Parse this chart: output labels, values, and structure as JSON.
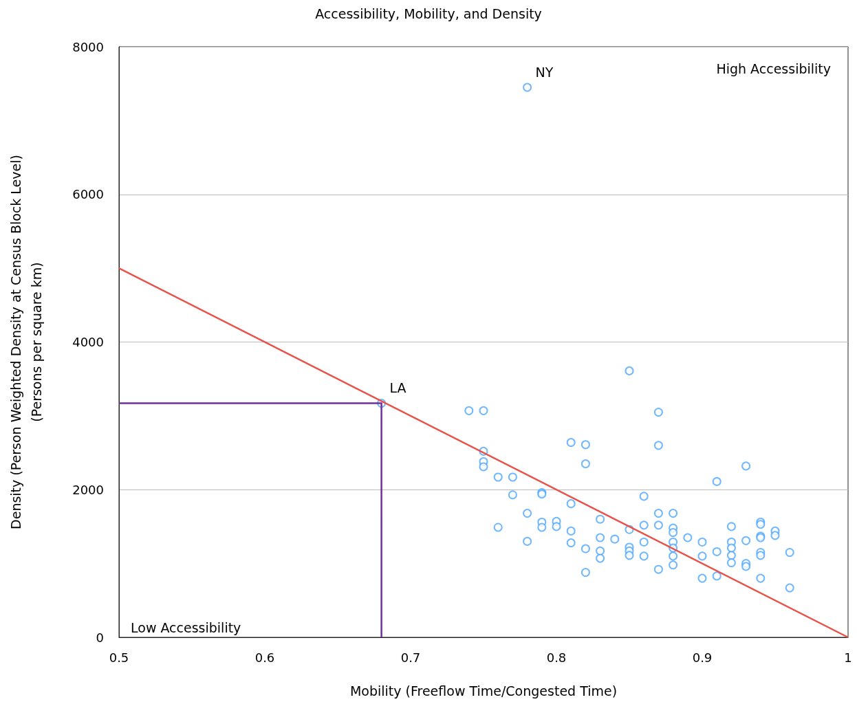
{
  "chart_data": {
    "type": "scatter",
    "title": "Accessibility, Mobility, and Density",
    "xlabel": "Mobility (Freeflow Time/Congested Time)",
    "ylabel": "Density (Person Weighted Density at Census Block Level)\n(Persons per square km)",
    "xlim": [
      0.5,
      1
    ],
    "xticks": [
      0.5,
      0.6,
      0.7,
      0.8,
      0.9,
      {
        "value": 1,
        "label": "1"
      }
    ],
    "ylim": [
      0,
      8000
    ],
    "yticks": [
      0,
      2000,
      4000,
      6000,
      8000
    ],
    "grid": "y",
    "series": [
      {
        "marker": "circle",
        "color": "#4da6ff",
        "x": [
          0.78,
          0.68,
          0.74,
          0.75,
          0.75,
          0.75,
          0.75,
          0.76,
          0.76,
          0.77,
          0.77,
          0.78,
          0.78,
          0.79,
          0.79,
          0.79,
          0.79,
          0.8,
          0.8,
          0.81,
          0.81,
          0.81,
          0.81,
          0.82,
          0.82,
          0.82,
          0.82,
          0.83,
          0.83,
          0.83,
          0.83,
          0.84,
          0.85,
          0.85,
          0.85,
          0.85,
          0.85,
          0.86,
          0.86,
          0.86,
          0.86,
          0.87,
          0.87,
          0.87,
          0.87,
          0.87,
          0.88,
          0.88,
          0.88,
          0.88,
          0.88,
          0.88,
          0.88,
          0.89,
          0.9,
          0.9,
          0.9,
          0.91,
          0.91,
          0.91,
          0.92,
          0.92,
          0.92,
          0.92,
          0.92,
          0.93,
          0.93,
          0.93,
          0.93,
          0.94,
          0.94,
          0.94,
          0.94,
          0.94,
          0.94,
          0.94,
          0.95,
          0.95,
          0.96,
          0.96
        ],
        "values": [
          7450,
          3170,
          3070,
          3070,
          2520,
          2380,
          2310,
          1490,
          2170,
          2170,
          1930,
          1680,
          1300,
          1960,
          1940,
          1560,
          1490,
          1570,
          1500,
          2640,
          1810,
          1440,
          1280,
          2610,
          2350,
          1200,
          880,
          1600,
          1350,
          1170,
          1070,
          1330,
          3610,
          1460,
          1220,
          1170,
          1110,
          1910,
          1520,
          1290,
          1100,
          3050,
          2600,
          1680,
          1520,
          920,
          1680,
          1480,
          1420,
          1290,
          1210,
          1100,
          980,
          1350,
          1290,
          1100,
          800,
          2110,
          1160,
          830,
          1500,
          1290,
          1210,
          1110,
          1010,
          2320,
          1310,
          1000,
          960,
          1560,
          1530,
          1370,
          1350,
          1150,
          1110,
          800,
          1440,
          1380,
          1150,
          670
        ]
      },
      {
        "type": "line",
        "color": "#e8524a",
        "x": [
          0.5,
          1
        ],
        "values": [
          5000,
          0
        ]
      },
      {
        "type": "line",
        "color": "#7030a0",
        "x": [
          0.5,
          0.68,
          0.68
        ],
        "values": [
          3170,
          3170,
          0
        ]
      }
    ],
    "annotations": [
      {
        "text": "NY",
        "x": 0.78,
        "y": 7450
      },
      {
        "text": "LA",
        "x": 0.68,
        "y": 3170
      },
      "High Accessibility",
      "Low Accessibility"
    ]
  }
}
